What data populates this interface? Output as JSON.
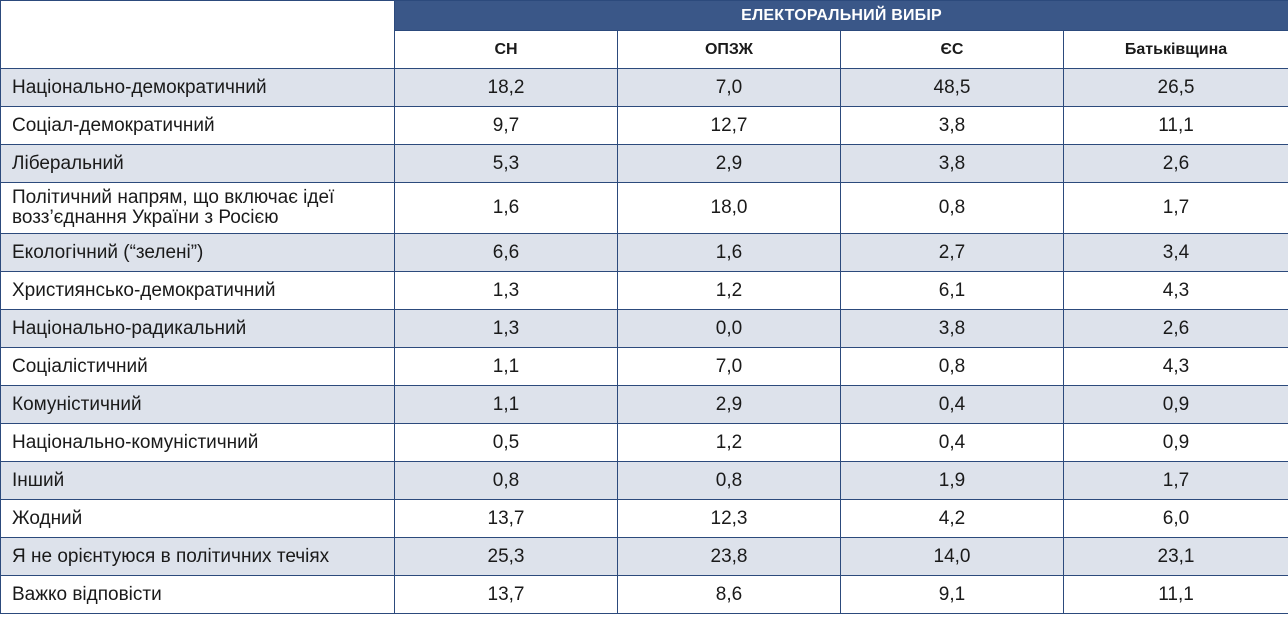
{
  "chart_data": {
    "type": "table",
    "group_header": "ЕЛЕКТОРАЛЬНИЙ ВИБІР",
    "columns": [
      "СН",
      "ОПЗЖ",
      "ЄС",
      "Батьківщина"
    ],
    "rows": [
      {
        "label": "Національно-демократичний",
        "values": [
          "18,2",
          "7,0",
          "48,5",
          "26,5"
        ]
      },
      {
        "label": "Соціал-демократичний",
        "values": [
          "9,7",
          "12,7",
          "3,8",
          "11,1"
        ]
      },
      {
        "label": "Ліберальний",
        "values": [
          "5,3",
          "2,9",
          "3,8",
          "2,6"
        ]
      },
      {
        "label": "Політичний напрям, що включає ідеї возз’єднання України з Росією",
        "values": [
          "1,6",
          "18,0",
          "0,8",
          "1,7"
        ]
      },
      {
        "label": "Екологічний (“зелені”)",
        "values": [
          "6,6",
          "1,6",
          "2,7",
          "3,4"
        ]
      },
      {
        "label": "Християнсько-демократичний",
        "values": [
          "1,3",
          "1,2",
          "6,1",
          "4,3"
        ]
      },
      {
        "label": "Національно-радикальний",
        "values": [
          "1,3",
          "0,0",
          "3,8",
          "2,6"
        ]
      },
      {
        "label": "Соціалістичний",
        "values": [
          "1,1",
          "7,0",
          "0,8",
          "4,3"
        ]
      },
      {
        "label": "Комуністичний",
        "values": [
          "1,1",
          "2,9",
          "0,4",
          "0,9"
        ]
      },
      {
        "label": "Національно-комуністичний",
        "values": [
          "0,5",
          "1,2",
          "0,4",
          "0,9"
        ]
      },
      {
        "label": "Інший",
        "values": [
          "0,8",
          "0,8",
          "1,9",
          "1,7"
        ]
      },
      {
        "label": "Жодний",
        "values": [
          "13,7",
          "12,3",
          "4,2",
          "6,0"
        ]
      },
      {
        "label": "Я не орієнтуюся в політичних течіях",
        "values": [
          "25,3",
          "23,8",
          "14,0",
          "23,1"
        ]
      },
      {
        "label": "Важко відповісти",
        "values": [
          "13,7",
          "8,6",
          "9,1",
          "11,1"
        ]
      }
    ],
    "colors": {
      "header_bg": "#3a5788",
      "shade_bg": "#dde2eb",
      "border": "#2c4a7c"
    }
  }
}
